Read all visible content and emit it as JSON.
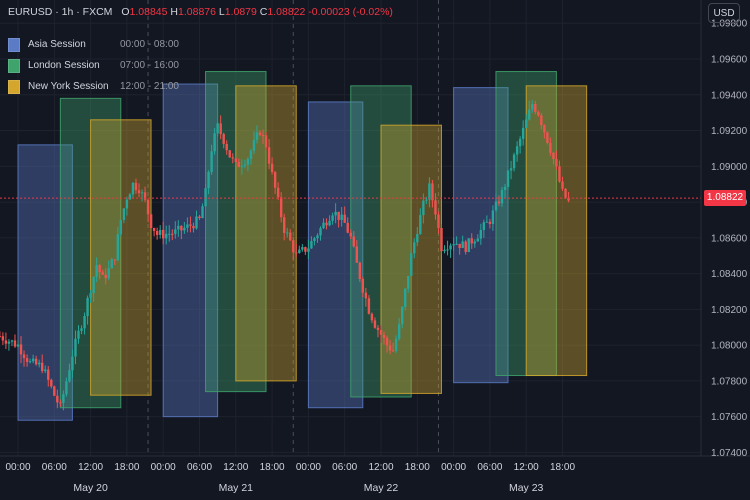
{
  "header": {
    "symbol": "EURUSD · 1h · FXCM",
    "o_label": "O",
    "o_value": "1.08845",
    "h_label": "H",
    "h_value": "1.08876",
    "l_label": "L",
    "l_value": "1.0879",
    "c_label": "C",
    "c_value": "1.08822",
    "change": "-0.00023 (-0.02%)"
  },
  "currency_button": "USD",
  "last_price_label": "1.08822",
  "colors": {
    "background": "#131722",
    "up": "#26a69a",
    "down": "#ef5350",
    "grid": "#1e222d",
    "text": "#d1d4dc",
    "last_price": "#f23645"
  },
  "chart_data": {
    "type": "candlestick",
    "sessions": [
      {
        "name": "Asia Session",
        "range": "00:00 - 08:00",
        "color": "#5b7bc7"
      },
      {
        "name": "London Session",
        "range": "07:00 - 16:00",
        "color": "#3fa36c"
      },
      {
        "name": "New York Session",
        "range": "12:00 - 21:00",
        "color": "#d4a72c"
      }
    ],
    "y_ticks": [
      "1.09800",
      "1.09600",
      "1.09400",
      "1.09200",
      "1.09000",
      "1.08800",
      "1.08600",
      "1.08400",
      "1.08200",
      "1.08000",
      "1.07800",
      "1.07600",
      "1.07400"
    ],
    "ylim": [
      1.0738,
      1.0993
    ],
    "last_price": 1.08822,
    "x_time_labels": [
      "00:00",
      "06:00",
      "12:00",
      "18:00",
      "00:00",
      "06:00",
      "12:00",
      "18:00",
      "00:00",
      "06:00",
      "12:00",
      "18:00",
      "00:00",
      "06:00",
      "12:00",
      "18:00"
    ],
    "x_day_labels": [
      "May 20",
      "May 21",
      "May 22",
      "May 23"
    ],
    "day_dividers_hours": [
      21,
      45,
      69
    ],
    "session_boxes": [
      {
        "session": 0,
        "start_hour": 0,
        "end_hour": 8,
        "high": 1.0912,
        "low": 1.0758
      },
      {
        "session": 1,
        "start_hour": 7,
        "end_hour": 16,
        "high": 1.0938,
        "low": 1.0765
      },
      {
        "session": 2,
        "start_hour": 12,
        "end_hour": 21,
        "high": 1.0926,
        "low": 1.0772
      },
      {
        "session": 0,
        "start_hour": 24,
        "end_hour": 32,
        "high": 1.0946,
        "low": 1.076
      },
      {
        "session": 1,
        "start_hour": 31,
        "end_hour": 40,
        "high": 1.0953,
        "low": 1.0774
      },
      {
        "session": 2,
        "start_hour": 36,
        "end_hour": 45,
        "high": 1.0945,
        "low": 1.078
      },
      {
        "session": 0,
        "start_hour": 48,
        "end_hour": 56,
        "high": 1.0936,
        "low": 1.0765
      },
      {
        "session": 1,
        "start_hour": 55,
        "end_hour": 64,
        "high": 1.0945,
        "low": 1.0771
      },
      {
        "session": 2,
        "start_hour": 60,
        "end_hour": 69,
        "high": 1.0923,
        "low": 1.0773
      },
      {
        "session": 0,
        "start_hour": 72,
        "end_hour": 80,
        "high": 1.0944,
        "low": 1.0779
      },
      {
        "session": 1,
        "start_hour": 79,
        "end_hour": 88,
        "high": 1.0953,
        "low": 1.0783
      },
      {
        "session": 2,
        "start_hour": 84,
        "end_hour": 93,
        "high": 1.0945,
        "low": 1.0783
      }
    ],
    "price_path": [
      [
        -3,
        1.0805
      ],
      [
        0,
        1.08
      ],
      [
        2,
        1.079
      ],
      [
        4,
        1.0788
      ],
      [
        6,
        1.0772
      ],
      [
        7,
        1.0765
      ],
      [
        8,
        1.078
      ],
      [
        9,
        1.0795
      ],
      [
        11,
        1.0818
      ],
      [
        12,
        1.0832
      ],
      [
        13,
        1.0845
      ],
      [
        14,
        1.0837
      ],
      [
        15,
        1.0842
      ],
      [
        16,
        1.085
      ],
      [
        17,
        1.087
      ],
      [
        18,
        1.0883
      ],
      [
        19,
        1.089
      ],
      [
        20,
        1.0888
      ],
      [
        21,
        1.088
      ],
      [
        22,
        1.0868
      ],
      [
        23,
        1.0862
      ],
      [
        24,
        1.0862
      ],
      [
        26,
        1.0863
      ],
      [
        28,
        1.0866
      ],
      [
        30,
        1.087
      ],
      [
        31,
        1.0885
      ],
      [
        32,
        1.091
      ],
      [
        33,
        1.0922
      ],
      [
        34,
        1.0915
      ],
      [
        35,
        1.0906
      ],
      [
        36,
        1.09
      ],
      [
        38,
        1.0905
      ],
      [
        40,
        1.092
      ],
      [
        41,
        1.0912
      ],
      [
        42,
        1.0895
      ],
      [
        43,
        1.088
      ],
      [
        44,
        1.0865
      ],
      [
        45,
        1.0858
      ],
      [
        46,
        1.085
      ],
      [
        48,
        1.0855
      ],
      [
        50,
        1.0865
      ],
      [
        52,
        1.0875
      ],
      [
        53,
        1.0872
      ],
      [
        54,
        1.0868
      ],
      [
        55,
        1.086
      ],
      [
        56,
        1.0845
      ],
      [
        57,
        1.0832
      ],
      [
        58,
        1.082
      ],
      [
        59,
        1.0812
      ],
      [
        60,
        1.0806
      ],
      [
        61,
        1.08
      ],
      [
        62,
        1.0797
      ],
      [
        63,
        1.081
      ],
      [
        64,
        1.083
      ],
      [
        65,
        1.085
      ],
      [
        66,
        1.0865
      ],
      [
        67,
        1.0878
      ],
      [
        68,
        1.0888
      ],
      [
        69,
        1.0875
      ],
      [
        70,
        1.0855
      ],
      [
        72,
        1.0858
      ],
      [
        74,
        1.0855
      ],
      [
        76,
        1.0862
      ],
      [
        78,
        1.087
      ],
      [
        80,
        1.0885
      ],
      [
        81,
        1.0895
      ],
      [
        82,
        1.0905
      ],
      [
        83,
        1.0915
      ],
      [
        84,
        1.0925
      ],
      [
        85,
        1.0935
      ],
      [
        86,
        1.093
      ],
      [
        87,
        1.092
      ],
      [
        88,
        1.091
      ],
      [
        89,
        1.0898
      ],
      [
        90,
        1.0885
      ],
      [
        91,
        1.088
      ]
    ]
  }
}
